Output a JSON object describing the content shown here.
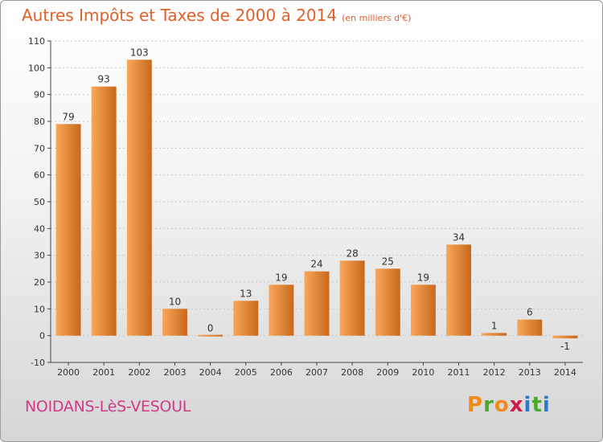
{
  "header": {
    "title": "Autres Impôts et Taxes de 2000 à 2014",
    "unit": "(en milliers d'€)"
  },
  "footer": {
    "place": "NOIDANS-LèS-VESOUL",
    "brand": "Proxiti"
  },
  "colors": {
    "title": "#e0602a",
    "place": "#d13a85",
    "bar_light": "#f9a75a",
    "bar_dark": "#c8681c",
    "grid": "#c8c8c8",
    "axis": "#444444",
    "brand_letters": [
      "#f08a1c",
      "#4aa82a",
      "#f08a1c",
      "#d11a4a",
      "#2a7acc",
      "#4aa82a",
      "#2a7acc"
    ]
  },
  "chart_data": {
    "type": "bar",
    "title": "Autres Impôts et Taxes de 2000 à 2014",
    "subtitle": "(en milliers d'€)",
    "xlabel": "",
    "ylabel": "",
    "categories": [
      "2000",
      "2001",
      "2002",
      "2003",
      "2004",
      "2005",
      "2006",
      "2007",
      "2008",
      "2009",
      "2010",
      "2011",
      "2012",
      "2013",
      "2014"
    ],
    "values": [
      79,
      93,
      103,
      10,
      0,
      13,
      19,
      24,
      28,
      25,
      19,
      34,
      1,
      6,
      -1
    ],
    "data_labels": [
      "79",
      "93",
      "103",
      "10",
      "0",
      "13",
      "19",
      "24",
      "28",
      "25",
      "19",
      "34",
      "1",
      "6",
      "-1"
    ],
    "yticks": [
      -10,
      0,
      10,
      20,
      30,
      40,
      50,
      60,
      70,
      80,
      90,
      100,
      110
    ],
    "ylim": [
      -10,
      110
    ],
    "grid": true,
    "legend": "none"
  }
}
